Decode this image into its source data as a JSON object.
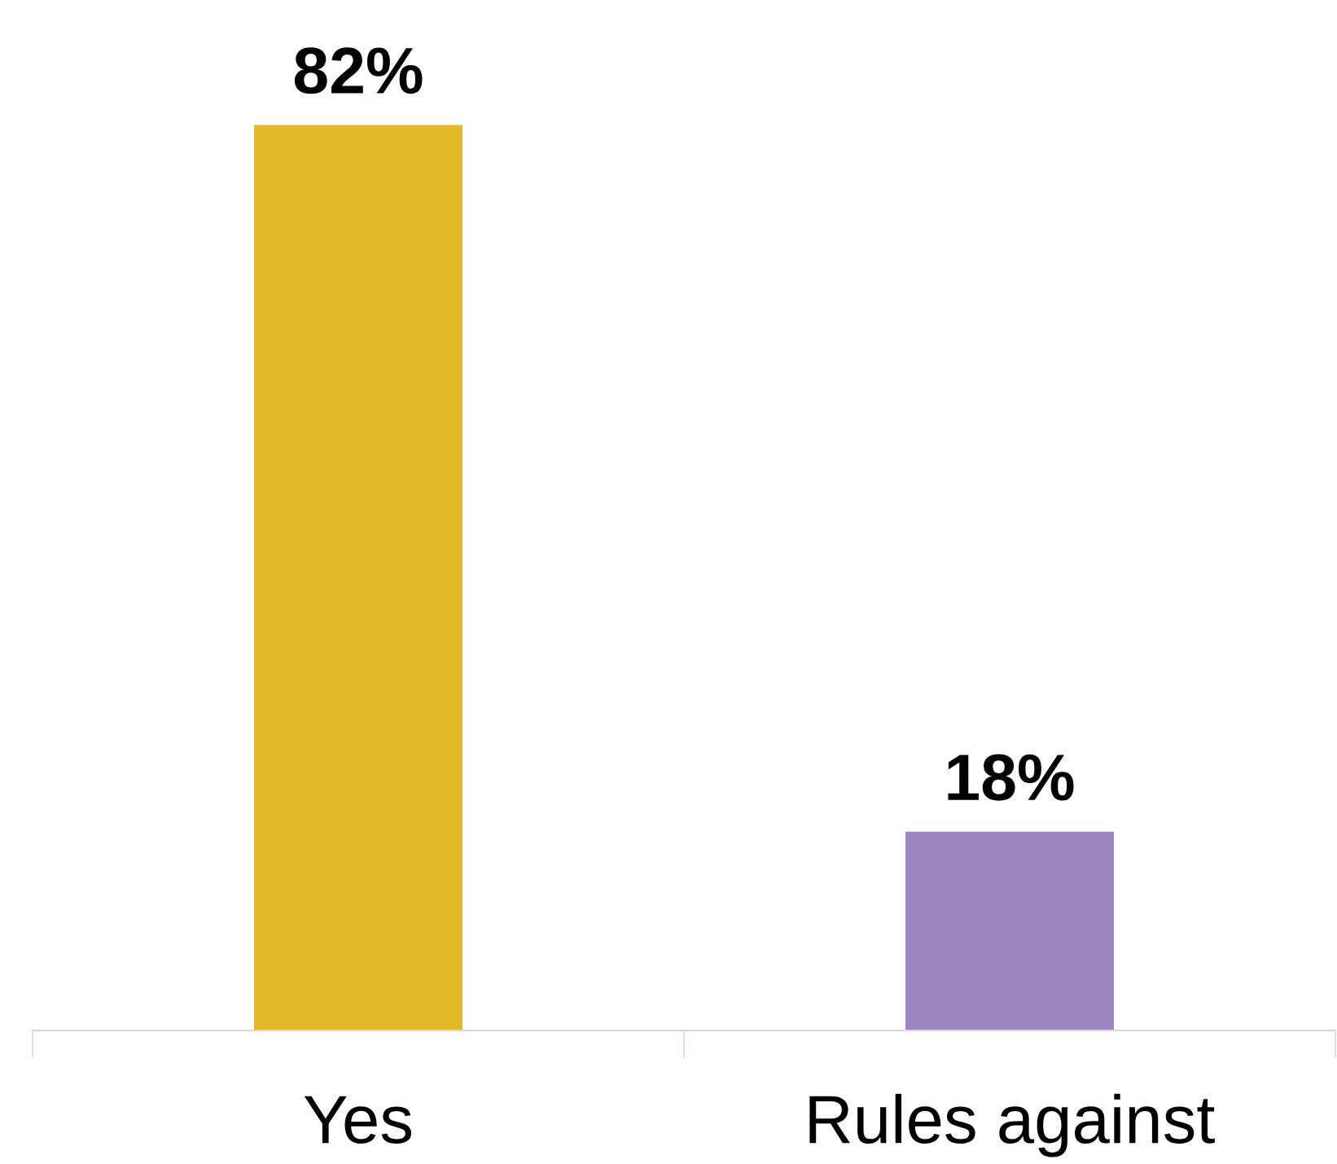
{
  "chart_data": {
    "type": "bar",
    "categories": [
      "Yes",
      "Rules against"
    ],
    "values": [
      82,
      18
    ],
    "colors": [
      "#e3bb2a",
      "#9e87c0"
    ],
    "data_labels": true,
    "value_labels": [
      "82%",
      "18%"
    ],
    "grid": false,
    "legend": false
  }
}
